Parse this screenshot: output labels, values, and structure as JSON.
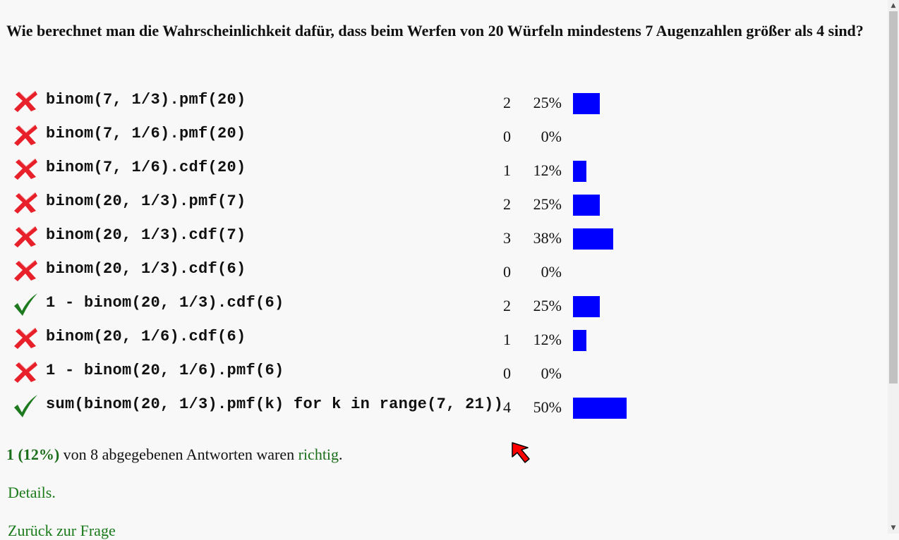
{
  "question": "Wie berechnet man die Wahrscheinlichkeit dafür, dass beim Werfen von 20 Würfeln mindestens 7 Augenzahlen größer als 4 sind?",
  "answers": [
    {
      "text": "binom(7, 1/3).pmf(20)",
      "correct": false,
      "count": "2",
      "percent": "25%",
      "share": 0.25
    },
    {
      "text": "binom(7, 1/6).pmf(20)",
      "correct": false,
      "count": "0",
      "percent": "0%",
      "share": 0
    },
    {
      "text": "binom(7, 1/6).cdf(20)",
      "correct": false,
      "count": "1",
      "percent": "12%",
      "share": 0.125
    },
    {
      "text": "binom(20, 1/3).pmf(7)",
      "correct": false,
      "count": "2",
      "percent": "25%",
      "share": 0.25
    },
    {
      "text": "binom(20, 1/3).cdf(7)",
      "correct": false,
      "count": "3",
      "percent": "38%",
      "share": 0.375
    },
    {
      "text": "binom(20, 1/3).cdf(6)",
      "correct": false,
      "count": "0",
      "percent": "0%",
      "share": 0
    },
    {
      "text": "1 - binom(20, 1/3).cdf(6)",
      "correct": true,
      "count": "2",
      "percent": "25%",
      "share": 0.25
    },
    {
      "text": "binom(20, 1/6).cdf(6)",
      "correct": false,
      "count": "1",
      "percent": "12%",
      "share": 0.125
    },
    {
      "text": "1 - binom(20, 1/6).pmf(6)",
      "correct": false,
      "count": "0",
      "percent": "0%",
      "share": 0
    },
    {
      "text": "sum(binom(20, 1/3).pmf(k) for k in range(7, 21))",
      "correct": true,
      "count": "4",
      "percent": "50%",
      "share": 0.5
    }
  ],
  "summary": {
    "correct_stat": "1 (12%)",
    "middle_text": " von 8 abgegebenen Antworten waren ",
    "link_text": "richtig",
    "end_text": "."
  },
  "details_link": "Details.",
  "back_link": "Zurück zur Frage",
  "colors": {
    "bar": "#0000ff",
    "correct_mark": "#1e7a1e",
    "wrong_mark": "#e8202a",
    "link": "#1a7a1a"
  },
  "icons": {
    "correct": "check-icon",
    "wrong": "cross-icon",
    "cursor": "mouse-pointer-icon"
  }
}
